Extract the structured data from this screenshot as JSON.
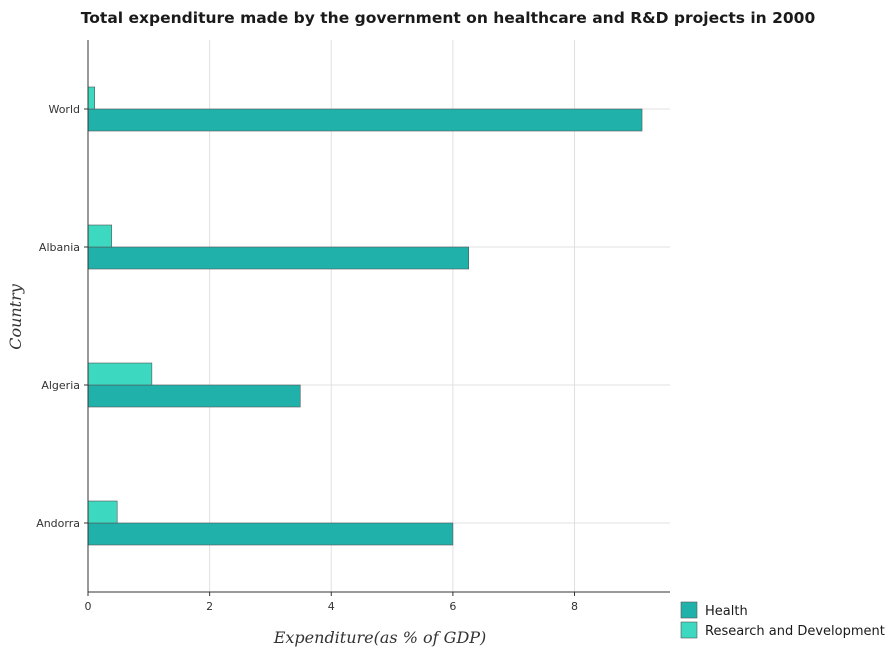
{
  "chart_data": {
    "type": "bar",
    "orientation": "horizontal",
    "title": "Total expenditure made by the government on healthcare and R&D projects in 2000",
    "xlabel": "Expenditure(as % of GDP)",
    "ylabel": "Country",
    "categories": [
      "World",
      "Albania",
      "Algeria",
      "Andorra"
    ],
    "series": [
      {
        "name": "Health",
        "color": "#20b2aa",
        "values": [
          9.11,
          6.26,
          3.49,
          6.0
        ]
      },
      {
        "name": "Research and Development",
        "color": "#3cd8c0",
        "values": [
          0.11,
          0.39,
          1.05,
          0.48
        ]
      }
    ],
    "xlim": [
      0,
      9.57
    ],
    "xticks": [
      0,
      2,
      4,
      6,
      8
    ],
    "xtick_labels": [
      "0",
      "2",
      "4",
      "6",
      "8"
    ],
    "grid": true,
    "legend_position": "bottom-right"
  }
}
